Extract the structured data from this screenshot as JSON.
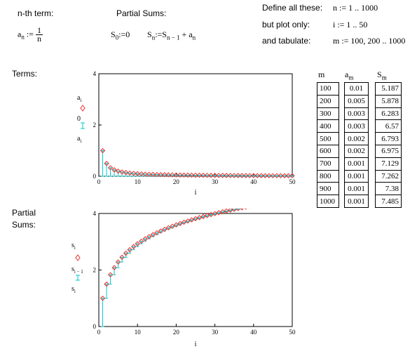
{
  "header": {
    "nth_term_label": "n-th term:",
    "an_name": "a",
    "an_sub": "n",
    "an_assign": ":=",
    "an_num": "1",
    "an_den": "n",
    "partial_sums_label": "Partial Sums:",
    "s0_def": "S",
    "s0_sub": "0",
    "s0_rest": ":=0",
    "sn_name": "S",
    "sn_sub": "n",
    "sn_assign": ":=S",
    "sn_prev_sub": "n − 1",
    "sn_plus": "+ a",
    "sn_a_sub": "n",
    "define_label": "Define all these:",
    "define_expr": "n := 1 .. 1000",
    "plot_label": "but plot only:",
    "plot_expr": "i := 1 .. 50",
    "tabulate_label": "and tabulate:",
    "tabulate_expr": "m := 100, 200 .. 1000"
  },
  "sections": {
    "terms_label": "Terms:",
    "partial_label_1": "Partial",
    "partial_label_2": "Sums:"
  },
  "table": {
    "col_m_header": "m",
    "col_a_header": "a",
    "col_a_sub": "m",
    "col_s_header": "S",
    "col_s_sub": "m",
    "m": [
      "100",
      "200",
      "300",
      "400",
      "500",
      "600",
      "700",
      "800",
      "900",
      "1000"
    ],
    "a": [
      "0.01",
      "0.005",
      "0.003",
      "0.003",
      "0.002",
      "0.002",
      "0.001",
      "0.001",
      "0.001",
      "0.001"
    ],
    "S": [
      "5.187",
      "5.878",
      "6.283",
      "6.57",
      "6.793",
      "6.975",
      "7.129",
      "7.262",
      "7.38",
      "7.485"
    ]
  },
  "colors": {
    "red_diamond": "#e8322d",
    "cyan_stem": "#00c8d2"
  },
  "chart_data": [
    {
      "type": "scatter",
      "xlabel": "i",
      "ylabel_top": "a",
      "ylabel_top_sub": "i",
      "ylabel_mid": "0",
      "ylabel_bot": "a",
      "ylabel_bot_sub": "i",
      "xlim": [
        0,
        50
      ],
      "ylim": [
        0,
        4
      ],
      "xticks": [
        0,
        10,
        20,
        30,
        40,
        50
      ],
      "yticks": [
        0,
        2,
        4
      ],
      "series": [
        {
          "style": "diamond",
          "formula": "1/i"
        },
        {
          "style": "stem",
          "formula": "1/i"
        }
      ]
    },
    {
      "type": "scatter",
      "xlabel": "i",
      "ylabel_top": "s",
      "ylabel_top_sub": "i",
      "ylabel_mid": "s",
      "ylabel_mid_sub": "i − 1",
      "ylabel_bot": "s",
      "ylabel_bot_sub": "i",
      "xlim": [
        0,
        50
      ],
      "ylim": [
        0,
        4
      ],
      "xticks": [
        0,
        10,
        20,
        30,
        40,
        50
      ],
      "yticks": [
        0,
        2,
        4
      ],
      "series": [
        {
          "style": "diamond",
          "formula": "H(i)"
        },
        {
          "style": "stem",
          "formula": "H(i-1) to H(i)"
        }
      ]
    }
  ]
}
